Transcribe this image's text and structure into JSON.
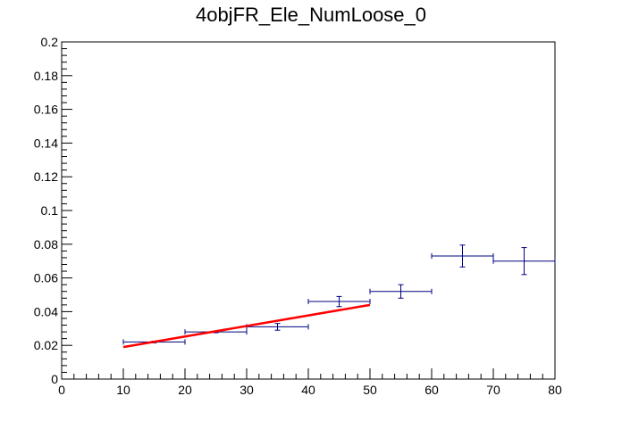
{
  "chart_data": {
    "type": "scatter",
    "title": "4objFR_Ele_NumLoose_0",
    "xlabel": "",
    "ylabel": "",
    "xlim": [
      0,
      80
    ],
    "ylim": [
      0,
      0.2
    ],
    "x_ticks": [
      0,
      10,
      20,
      30,
      40,
      50,
      60,
      70,
      80
    ],
    "x_tick_labels": [
      "0",
      "10",
      "20",
      "30",
      "40",
      "50",
      "60",
      "70",
      "80"
    ],
    "y_ticks": [
      0,
      0.02,
      0.04,
      0.06,
      0.08,
      0.1,
      0.12,
      0.14,
      0.16,
      0.18,
      0.2
    ],
    "y_tick_labels": [
      "0",
      "0.02",
      "0.04",
      "0.06",
      "0.08",
      "0.1",
      "0.12",
      "0.14",
      "0.16",
      "0.18",
      "0.2"
    ],
    "grid": false,
    "colors": {
      "points": "#000080",
      "fit": "#ff0000",
      "frame": "#000000"
    },
    "series": [
      {
        "type": "errorbar",
        "points": [
          {
            "x": 15,
            "xerr": 5,
            "y": 0.022,
            "yerr": 0.0005
          },
          {
            "x": 25,
            "xerr": 5,
            "y": 0.028,
            "yerr": 0.0005
          },
          {
            "x": 35,
            "xerr": 5,
            "y": 0.031,
            "yerr": 0.002
          },
          {
            "x": 45,
            "xerr": 5,
            "y": 0.046,
            "yerr": 0.003
          },
          {
            "x": 55,
            "xerr": 5,
            "y": 0.052,
            "yerr": 0.004
          },
          {
            "x": 65,
            "xerr": 5,
            "y": 0.073,
            "yerr": 0.0065
          },
          {
            "x": 75,
            "xerr": 5,
            "y": 0.07,
            "yerr": 0.008
          }
        ]
      },
      {
        "type": "fit-line",
        "points": [
          {
            "x": 10,
            "y": 0.019
          },
          {
            "x": 50,
            "y": 0.044
          }
        ]
      }
    ]
  }
}
